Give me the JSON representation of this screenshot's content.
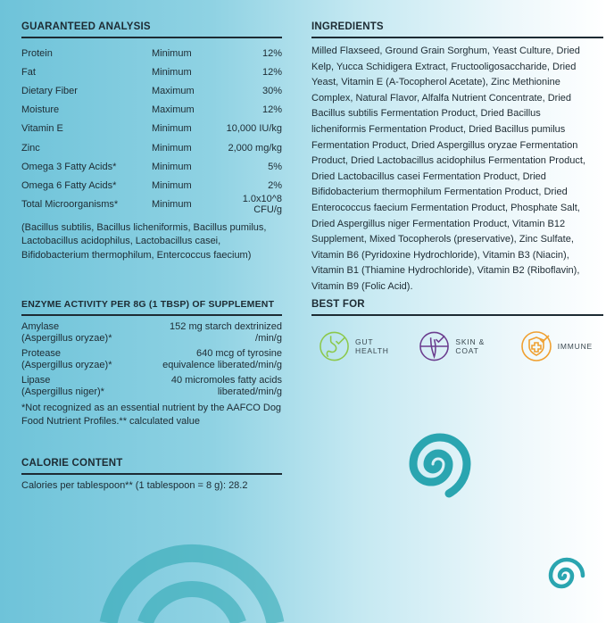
{
  "guaranteed_analysis": {
    "title": "GUARANTEED ANALYSIS",
    "rows": [
      {
        "name": "Protein",
        "qualifier": "Minimum",
        "value": "12%"
      },
      {
        "name": "Fat",
        "qualifier": "Minimum",
        "value": "12%"
      },
      {
        "name": "Dietary Fiber",
        "qualifier": "Maximum",
        "value": "30%"
      },
      {
        "name": "Moisture",
        "qualifier": "Maximum",
        "value": "12%"
      },
      {
        "name": "Vitamin E",
        "qualifier": "Minimum",
        "value": "10,000 IU/kg"
      },
      {
        "name": "Zinc",
        "qualifier": "Minimum",
        "value": "2,000 mg/kg"
      },
      {
        "name": "Omega 3 Fatty Acids*",
        "qualifier": "Minimum",
        "value": "5%"
      },
      {
        "name": "Omega 6 Fatty Acids*",
        "qualifier": "Minimum",
        "value": "2%"
      },
      {
        "name": "Total Microorganisms*",
        "qualifier": "Minimum",
        "value": "1.0x10^8 CFU/g"
      }
    ],
    "note": "(Bacillus subtilis, Bacillus licheniformis, Bacillus pumilus, Lactobacillus acidophilus, Lactobacillus casei, Bifidobacterium thermophilum, Entercoccus faecium)"
  },
  "enzyme": {
    "title": "ENZYME ACTIVITY PER 8G (1 TBSP) OF SUPPLEMENT",
    "rows": [
      {
        "name1": "Amylase",
        "name2": "(Aspergillus oryzae)*",
        "value1": "152 mg starch dextrinized",
        "value2": "/min/g"
      },
      {
        "name1": "Protease",
        "name2": "(Aspergillus oryzae)*",
        "value1": "640 mcg of tyrosine",
        "value2": "equivalence liberated/min/g"
      },
      {
        "name1": "Lipase",
        "name2": "(Aspergillus niger)*",
        "value1": "40 micromoles fatty acids",
        "value2": "liberated/min/g"
      }
    ],
    "footnote": "*Not recognized as an essential nutrient by the AAFCO Dog Food Nutrient Profiles.** calculated value"
  },
  "calorie": {
    "title": "CALORIE CONTENT",
    "text": "Calories per tablespoon** (1 tablespoon = 8 g): 28.2"
  },
  "ingredients": {
    "title": "INGREDIENTS",
    "text": "Milled Flaxseed, Ground Grain Sorghum, Yeast Culture, Dried Kelp, Yucca Schidigera Extract, Fructooligosaccharide, Dried Yeast, Vitamin E (A-Tocopherol Acetate), Zinc Methionine Complex, Natural Flavor, Alfalfa Nutrient Concentrate, Dried Bacillus subtilis Fermentation Product, Dried Bacillus licheniformis Fermentation Product, Dried Bacillus pumilus Fermentation Product, Dried Aspergillus oryzae Fermentation Product, Dried Lactobacillus acidophilus Fermentation Product, Dried Lactobacillus casei Fermentation Product, Dried Bifidobacterium thermophilum Fermentation Product, Dried Enterococcus faecium Fermentation Product, Phosphate Salt, Dried Aspergillus niger Fermentation Product, Vitamin B12 Supplement, Mixed Tocopherols (preservative), Zinc Sulfate, Vitamin B6 (Pyridoxine Hydrochloride), Vitamin B3 (Niacin), Vitamin B1 (Thiamine Hydrochloride), Vitamin B2 (Riboflavin), Vitamin B9 (Folic Acid)."
  },
  "best_for": {
    "title": "BEST FOR",
    "items": [
      {
        "label": "GUT HEALTH",
        "icon": "stomach-check-icon",
        "color": "#8cc84b"
      },
      {
        "label": "SKIN & COAT",
        "icon": "hair-follicle-check-icon",
        "color": "#6b3d8f"
      },
      {
        "label": "IMMUNE",
        "icon": "shield-cross-check-icon",
        "color": "#f0a030"
      }
    ]
  },
  "colors": {
    "spiral": "#2aa5b0",
    "text": "#1d2b33"
  }
}
